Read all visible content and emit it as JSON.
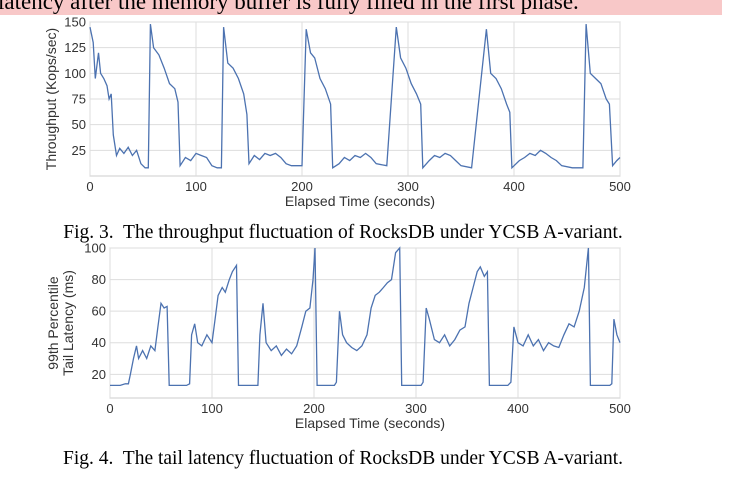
{
  "header_text": "latency after the memory buffer is fully filled in the first phase.",
  "captions": [
    "Fig. 3.  The throughput fluctuation of RocksDB under YCSB A-variant.",
    "Fig. 4.  The tail latency fluctuation of RocksDB under YCSB A-variant."
  ],
  "chart_data": [
    {
      "type": "line",
      "x_label": "Elapsed Time (seconds)",
      "y_label": [
        "Throughput (Kops/sec)"
      ],
      "color": "#4c72b0",
      "grid": true,
      "xlim": [
        0,
        500
      ],
      "xticks": [
        0,
        100,
        200,
        300,
        400,
        500
      ],
      "ylim": [
        0,
        150
      ],
      "yticks": [
        25,
        50,
        75,
        100,
        125,
        150
      ],
      "x": [
        0,
        3,
        5,
        8,
        10,
        13,
        16,
        18,
        20,
        22,
        25,
        28,
        32,
        36,
        40,
        44,
        48,
        52,
        55,
        57,
        60,
        65,
        70,
        75,
        80,
        83,
        85,
        90,
        95,
        100,
        105,
        110,
        115,
        120,
        124,
        126,
        130,
        135,
        140,
        145,
        148,
        150,
        155,
        160,
        165,
        170,
        175,
        180,
        185,
        190,
        200,
        204,
        208,
        212,
        217,
        222,
        227,
        229,
        235,
        240,
        245,
        250,
        255,
        260,
        265,
        270,
        280,
        289,
        293,
        298,
        303,
        308,
        312,
        314,
        320,
        325,
        330,
        335,
        340,
        345,
        350,
        360,
        374,
        378,
        383,
        388,
        393,
        396,
        398,
        405,
        410,
        415,
        420,
        425,
        430,
        435,
        440,
        445,
        455,
        465,
        468,
        472,
        477,
        482,
        487,
        490,
        493,
        497,
        500
      ],
      "values": [
        145,
        130,
        95,
        120,
        100,
        95,
        88,
        75,
        80,
        40,
        20,
        27,
        22,
        28,
        20,
        25,
        12,
        8,
        8,
        148,
        125,
        118,
        105,
        90,
        85,
        72,
        10,
        18,
        15,
        22,
        20,
        18,
        10,
        8,
        8,
        145,
        110,
        105,
        95,
        80,
        60,
        12,
        20,
        16,
        22,
        20,
        22,
        18,
        12,
        10,
        10,
        143,
        120,
        115,
        95,
        85,
        70,
        8,
        12,
        18,
        15,
        20,
        18,
        22,
        18,
        12,
        10,
        145,
        115,
        105,
        90,
        80,
        70,
        8,
        15,
        20,
        18,
        22,
        20,
        15,
        10,
        8,
        143,
        100,
        95,
        85,
        70,
        62,
        8,
        15,
        18,
        22,
        20,
        25,
        22,
        18,
        15,
        10,
        8,
        8,
        148,
        100,
        95,
        90,
        75,
        70,
        10,
        15,
        18
      ]
    },
    {
      "type": "line",
      "x_label": "Elapsed Time (seconds)",
      "y_label": [
        "99th Percentile",
        "Tail Latency (ms)"
      ],
      "color": "#4c72b0",
      "grid": true,
      "xlim": [
        0,
        500
      ],
      "xticks": [
        0,
        100,
        200,
        300,
        400,
        500
      ],
      "ylim": [
        5,
        100
      ],
      "yticks": [
        20,
        40,
        60,
        80,
        100
      ],
      "x": [
        0,
        5,
        10,
        15,
        18,
        20,
        23,
        26,
        28,
        32,
        36,
        40,
        44,
        47,
        50,
        53,
        56,
        58,
        65,
        70,
        75,
        78,
        80,
        83,
        86,
        90,
        95,
        100,
        103,
        106,
        110,
        113,
        117,
        120,
        124,
        126,
        135,
        140,
        145,
        147,
        150,
        153,
        158,
        163,
        168,
        173,
        178,
        183,
        188,
        192,
        196,
        199,
        201,
        203,
        210,
        220,
        222,
        225,
        228,
        232,
        237,
        242,
        247,
        252,
        256,
        260,
        264,
        268,
        272,
        276,
        280,
        284,
        286,
        295,
        300,
        305,
        307,
        310,
        313,
        318,
        323,
        328,
        333,
        338,
        343,
        348,
        352,
        356,
        360,
        363,
        367,
        370,
        372,
        380,
        390,
        393,
        396,
        400,
        405,
        410,
        415,
        420,
        425,
        430,
        435,
        440,
        445,
        450,
        455,
        460,
        465,
        469,
        471,
        480,
        490,
        492,
        494,
        497,
        500
      ],
      "values": [
        13,
        13,
        13,
        14,
        14,
        20,
        30,
        38,
        30,
        35,
        30,
        38,
        35,
        50,
        65,
        62,
        63,
        13,
        13,
        13,
        13,
        14,
        45,
        52,
        40,
        38,
        45,
        40,
        55,
        70,
        75,
        72,
        80,
        85,
        89,
        13,
        13,
        13,
        13,
        45,
        65,
        40,
        35,
        38,
        32,
        36,
        33,
        38,
        50,
        60,
        62,
        80,
        100,
        13,
        13,
        13,
        15,
        60,
        45,
        40,
        37,
        35,
        38,
        45,
        62,
        70,
        72,
        75,
        78,
        80,
        97,
        100,
        13,
        13,
        13,
        13,
        15,
        62,
        55,
        42,
        40,
        45,
        38,
        42,
        48,
        50,
        65,
        75,
        85,
        88,
        82,
        85,
        13,
        13,
        13,
        15,
        50,
        40,
        38,
        45,
        38,
        42,
        35,
        40,
        38,
        37,
        45,
        52,
        50,
        60,
        75,
        100,
        13,
        13,
        13,
        14,
        55,
        45,
        40
      ]
    }
  ]
}
